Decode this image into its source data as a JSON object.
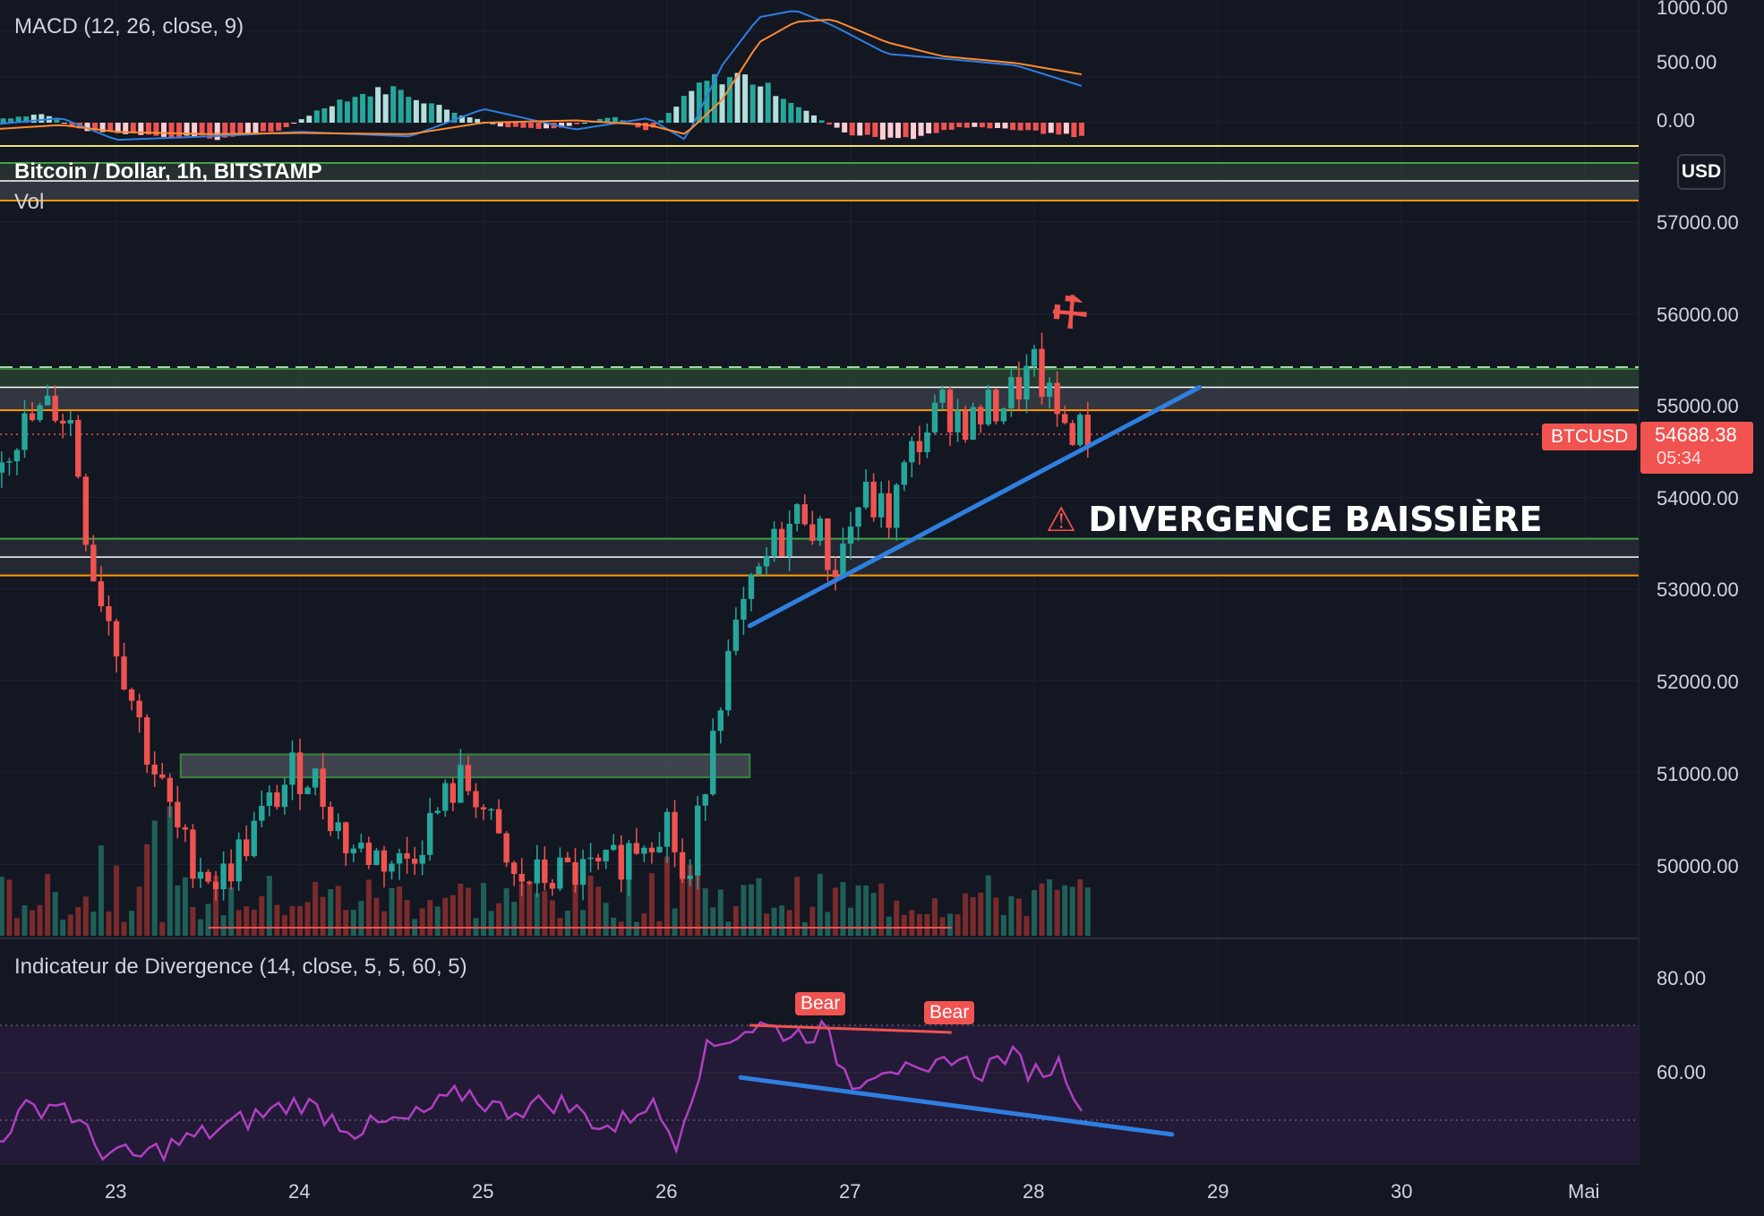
{
  "header": {
    "macd_title": "MACD (12, 26, close, 9)",
    "symbol_title": "Bitcoin / Dollar, 1h, BITSTAMP",
    "vol_title": "Vol",
    "divergence_title": "Indicateur de Divergence (14, close, 5, 5, 60, 5)"
  },
  "price_scale": {
    "currency": "USD",
    "symbol_tag": "BTCUSD",
    "last_price": "54688.38",
    "countdown": "05:34"
  },
  "annotations": {
    "warning_text": "DIVERGENCE BAISSIÈRE",
    "bear_label_1": "Bear",
    "bear_label_2": "Bear"
  },
  "colors": {
    "background": "#131722",
    "up": "#26a69a",
    "down": "#ef5350",
    "trendline": "#2f7fe0",
    "rsi": "#b040c0",
    "macd_line": "#2f7fe0",
    "signal_line": "#ff8a30"
  },
  "chart_data": [
    {
      "type": "line",
      "title": "MACD (12, 26, close, 9)",
      "x_ticks": [
        "23",
        "24",
        "25",
        "26",
        "27",
        "28",
        "29",
        "30",
        "Mai"
      ],
      "y_ticks": [
        "1000.00",
        "500.00",
        "0.00"
      ],
      "ylim": [
        -200,
        1000
      ],
      "series": [
        {
          "name": "MACD",
          "x": [
            22.3,
            22.7,
            23.0,
            23.5,
            24.0,
            24.6,
            25.0,
            25.5,
            25.9,
            26.1,
            26.3,
            26.5,
            26.7,
            26.9,
            27.2,
            27.5,
            27.9,
            28.3
          ],
          "values": [
            -20,
            40,
            -150,
            -120,
            -80,
            -120,
            120,
            -60,
            40,
            -150,
            500,
            920,
            980,
            850,
            600,
            560,
            500,
            300
          ]
        },
        {
          "name": "Signal",
          "x": [
            22.3,
            22.7,
            23.0,
            23.5,
            24.0,
            24.6,
            25.0,
            25.5,
            25.9,
            26.1,
            26.3,
            26.5,
            26.7,
            26.9,
            27.2,
            27.5,
            27.9,
            28.3
          ],
          "values": [
            -60,
            -20,
            -80,
            -100,
            -90,
            -100,
            0,
            20,
            -20,
            -100,
            200,
            700,
            880,
            900,
            700,
            580,
            520,
            410
          ]
        }
      ],
      "histogram": {
        "x": [
          22.4,
          22.6,
          22.8,
          23.2,
          23.6,
          23.9,
          24.2,
          24.5,
          24.8,
          25.1,
          25.4,
          25.7,
          25.9,
          26.2,
          26.4,
          26.6,
          26.8,
          27.0,
          27.3,
          27.6,
          27.9,
          28.2
        ],
        "values": [
          40,
          80,
          -60,
          -130,
          -140,
          -60,
          200,
          320,
          120,
          -40,
          -60,
          60,
          -80,
          380,
          440,
          280,
          60,
          -120,
          -150,
          -40,
          -60,
          -120
        ]
      }
    },
    {
      "type": "candlestick",
      "title": "Bitcoin / Dollar, 1h, BITSTAMP",
      "y_ticks": [
        "57000.00",
        "56000.00",
        "55000.00",
        "54000.00",
        "53000.00",
        "52000.00",
        "51000.00",
        "50000.00"
      ],
      "ylim": [
        49250,
        57250
      ],
      "last_price": 54688.38,
      "support_resistance": [
        55400,
        55200,
        54950,
        53550,
        53350,
        53150
      ],
      "consolidation_zone": {
        "x": [
          23.35,
          26.45
        ],
        "y": [
          50950,
          51200
        ]
      },
      "trendline": {
        "x": [
          26.45,
          28.9
        ],
        "y": [
          52600,
          55200
        ]
      },
      "anchors_x": [
        22.3,
        22.5,
        22.7,
        22.8,
        22.9,
        23.0,
        23.2,
        23.4,
        23.6,
        23.8,
        24.0,
        24.1,
        24.3,
        24.6,
        24.9,
        25.0,
        25.2,
        25.5,
        25.7,
        25.9,
        26.05,
        26.15,
        26.3,
        26.45,
        26.6,
        26.8,
        26.95,
        27.1,
        27.25,
        27.4,
        27.55,
        27.7,
        27.9,
        28.05,
        28.15,
        28.3
      ],
      "anchors_y": [
        54200,
        54700,
        55000,
        54800,
        53300,
        52700,
        51300,
        50200,
        49800,
        50400,
        51000,
        51000,
        50200,
        50000,
        50900,
        50800,
        49800,
        49900,
        49900,
        50300,
        50500,
        49600,
        51700,
        52700,
        53400,
        53900,
        53200,
        54000,
        53800,
        54600,
        55000,
        54800,
        55100,
        55400,
        54900,
        54700
      ]
    },
    {
      "type": "bar",
      "title": "Vol",
      "seed": 7
    },
    {
      "type": "line",
      "title": "Indicateur de Divergence (14, close, 5, 5, 60, 5)",
      "y_ticks": [
        "80.00",
        "60.00"
      ],
      "ylim": [
        40,
        90
      ],
      "band": [
        50,
        70
      ],
      "series": [
        {
          "name": "RSI",
          "x": [
            22.3,
            22.5,
            22.7,
            22.9,
            23.1,
            23.4,
            23.7,
            24.0,
            24.3,
            24.6,
            24.9,
            25.1,
            25.4,
            25.7,
            25.9,
            26.05,
            26.2,
            26.35,
            26.5,
            26.7,
            26.85,
            27.0,
            27.2,
            27.4,
            27.55,
            27.7,
            27.85,
            28.0,
            28.15,
            28.3
          ],
          "values": [
            44,
            52,
            54,
            44,
            42,
            46,
            50,
            54,
            48,
            50,
            56,
            52,
            54,
            48,
            54,
            46,
            64,
            68,
            70,
            68,
            69,
            58,
            62,
            58,
            64,
            60,
            64,
            60,
            62,
            50
          ]
        }
      ],
      "divergence_price_line": {
        "x": [
          26.45,
          27.55
        ],
        "y": [
          70,
          68.5
        ]
      },
      "divergence_rsi_line": {
        "x": [
          26.4,
          28.75
        ],
        "y": [
          59,
          47
        ]
      }
    }
  ]
}
